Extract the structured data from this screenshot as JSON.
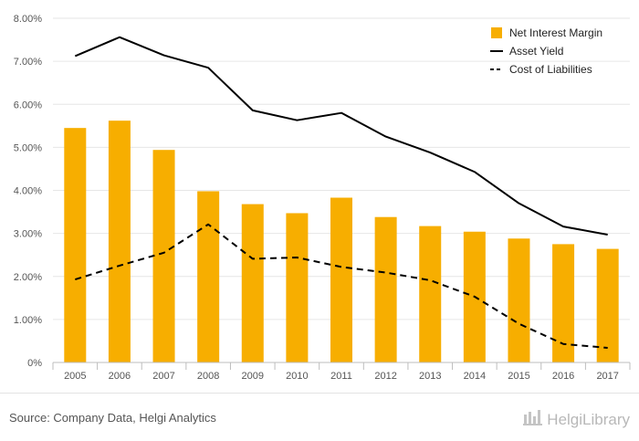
{
  "chart_data": {
    "type": "bar",
    "categories": [
      "2005",
      "2006",
      "2007",
      "2008",
      "2009",
      "2010",
      "2011",
      "2012",
      "2013",
      "2014",
      "2015",
      "2016",
      "2017"
    ],
    "series": [
      {
        "name": "Net Interest Margin",
        "kind": "bar",
        "color": "#F7AE00",
        "values": [
          5.45,
          5.62,
          4.94,
          3.98,
          3.68,
          3.47,
          3.83,
          3.38,
          3.17,
          3.04,
          2.88,
          2.75,
          2.64
        ]
      },
      {
        "name": "Asset Yield",
        "kind": "line",
        "style": "solid",
        "color": "#000000",
        "values": [
          7.12,
          7.56,
          7.14,
          6.85,
          5.86,
          5.63,
          5.8,
          5.25,
          4.88,
          4.43,
          3.7,
          3.16,
          2.97
        ]
      },
      {
        "name": "Cost of Liabilities",
        "kind": "line",
        "style": "dashed",
        "color": "#000000",
        "values": [
          1.93,
          2.25,
          2.55,
          3.21,
          2.41,
          2.44,
          2.22,
          2.09,
          1.91,
          1.53,
          0.9,
          0.43,
          0.34
        ]
      }
    ],
    "ylim": [
      0,
      8
    ],
    "yticks": [
      "0%",
      "1.00%",
      "2.00%",
      "3.00%",
      "4.00%",
      "5.00%",
      "6.00%",
      "7.00%",
      "8.00%"
    ],
    "grid": true,
    "legend_position": "top-right"
  },
  "footer": {
    "source": "Source: Company Data, Helgi Analytics",
    "logo_text": "HelgiLibrary"
  }
}
